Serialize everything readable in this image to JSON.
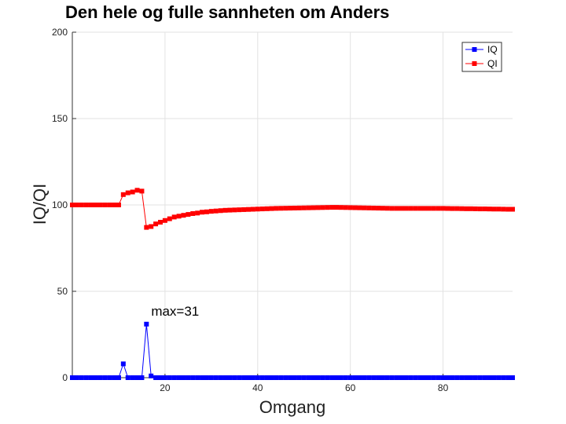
{
  "chart_data": {
    "type": "line",
    "title": "Den hele og fulle sannheten om Anders",
    "xlabel": "Omgang",
    "ylabel": "IQ/QI",
    "xlim": [
      0,
      95
    ],
    "ylim": [
      0,
      200
    ],
    "xticks": [
      20,
      40,
      60,
      80
    ],
    "yticks": [
      0,
      50,
      100,
      150,
      200
    ],
    "grid": true,
    "legend_position": "top-right",
    "annotation": {
      "text": "max=31",
      "x": 16,
      "y": 31
    },
    "x": [
      0,
      1,
      2,
      3,
      4,
      5,
      6,
      7,
      8,
      9,
      10,
      11,
      12,
      13,
      14,
      15,
      16,
      17,
      18,
      19,
      20,
      21,
      22,
      23,
      24,
      25,
      26,
      27,
      28,
      29,
      30,
      31,
      32,
      33,
      34,
      35,
      36,
      37,
      38,
      39,
      40,
      41,
      42,
      43,
      44,
      45,
      46,
      47,
      48,
      49,
      50,
      51,
      52,
      53,
      54,
      55,
      56,
      57,
      58,
      59,
      60,
      61,
      62,
      63,
      64,
      65,
      66,
      67,
      68,
      69,
      70,
      71,
      72,
      73,
      74,
      75,
      76,
      77,
      78,
      79,
      80,
      81,
      82,
      83,
      84,
      85,
      86,
      87,
      88,
      89,
      90,
      91,
      92,
      93,
      94,
      95
    ],
    "series": [
      {
        "name": "IQ",
        "color": "#0000ff",
        "values": [
          0,
          0,
          0,
          0,
          0,
          0,
          0,
          0,
          0,
          0,
          0,
          8,
          0,
          0,
          0,
          0,
          31,
          1,
          0,
          0,
          0,
          0,
          0,
          0,
          0,
          0,
          0,
          0,
          0,
          0,
          0,
          0,
          0,
          0,
          0,
          0,
          0,
          0,
          0,
          0,
          0,
          0,
          0,
          0,
          0,
          0,
          0,
          0,
          0,
          0,
          0,
          0,
          0,
          0,
          0,
          0,
          0,
          0,
          0,
          0,
          0,
          0,
          0,
          0,
          0,
          0,
          0,
          0,
          0,
          0,
          0,
          0,
          0,
          0,
          0,
          0,
          0,
          0,
          0,
          0,
          0,
          0,
          0,
          0,
          0,
          0,
          0,
          0,
          0,
          0,
          0,
          0,
          0,
          0,
          0,
          0
        ]
      },
      {
        "name": "QI",
        "color": "#ff0000",
        "values": [
          100,
          100,
          100,
          100,
          100,
          100,
          100,
          100,
          100,
          100,
          100,
          106,
          107,
          107.5,
          108.5,
          108,
          87,
          87.5,
          89,
          90,
          91,
          92,
          93,
          93.5,
          94,
          94.5,
          95,
          95.3,
          95.8,
          96,
          96.3,
          96.5,
          96.7,
          96.9,
          97,
          97.1,
          97.2,
          97.3,
          97.4,
          97.5,
          97.6,
          97.7,
          97.8,
          97.9,
          98,
          98.05,
          98.1,
          98.15,
          98.2,
          98.25,
          98.3,
          98.35,
          98.4,
          98.45,
          98.5,
          98.55,
          98.6,
          98.6,
          98.55,
          98.5,
          98.45,
          98.4,
          98.35,
          98.3,
          98.25,
          98.2,
          98.15,
          98.1,
          98.05,
          98,
          98,
          98,
          98,
          98,
          98,
          98,
          98,
          98,
          98,
          98,
          98,
          97.95,
          97.9,
          97.9,
          97.85,
          97.8,
          97.8,
          97.75,
          97.7,
          97.7,
          97.65,
          97.6,
          97.6,
          97.55,
          97.5,
          97.5
        ]
      }
    ]
  }
}
